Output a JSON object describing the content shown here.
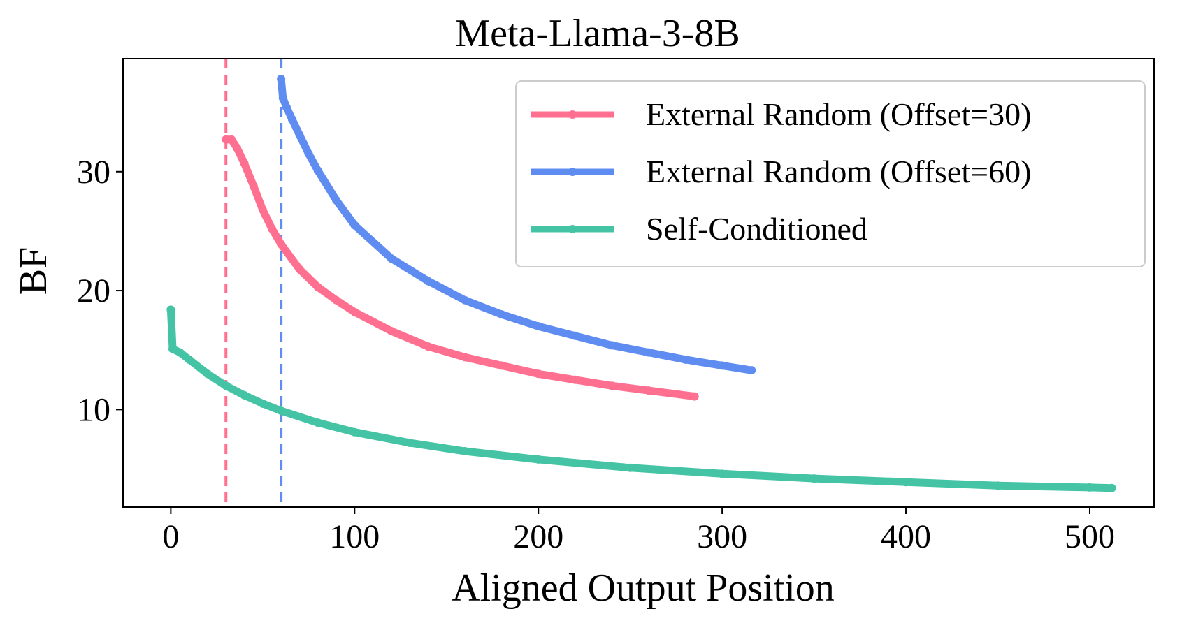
{
  "chart_data": {
    "type": "line",
    "title": "Meta-Llama-3-8B",
    "xlabel": "Aligned Output Position",
    "ylabel": "BF",
    "xlim": [
      -26,
      535
    ],
    "ylim": [
      1.8,
      39.5
    ],
    "xticks": [
      0,
      100,
      200,
      300,
      400,
      500
    ],
    "yticks": [
      10,
      20,
      30
    ],
    "legend_position": "top-right",
    "grid": false,
    "series": [
      {
        "name": "External Random (Offset=30)",
        "color": "#ff7090",
        "x": [
          30,
          33,
          36,
          40,
          45,
          50,
          55,
          60,
          70,
          80,
          90,
          100,
          120,
          140,
          160,
          180,
          200,
          220,
          240,
          260,
          285
        ],
        "y": [
          32.7,
          32.7,
          32.0,
          30.7,
          28.8,
          26.8,
          25.2,
          23.9,
          21.8,
          20.3,
          19.2,
          18.2,
          16.6,
          15.3,
          14.4,
          13.7,
          13.0,
          12.5,
          12.0,
          11.6,
          11.1
        ]
      },
      {
        "name": "External Random (Offset=60)",
        "color": "#5e8cf0",
        "x": [
          60,
          61,
          63,
          66,
          70,
          75,
          80,
          90,
          100,
          120,
          140,
          160,
          180,
          200,
          220,
          240,
          260,
          280,
          300,
          316
        ],
        "y": [
          37.8,
          36.2,
          35.4,
          34.4,
          33.1,
          31.5,
          30.1,
          27.6,
          25.5,
          22.7,
          20.8,
          19.2,
          18.0,
          17.0,
          16.2,
          15.4,
          14.8,
          14.2,
          13.7,
          13.3
        ]
      },
      {
        "name": "Self-Conditioned",
        "color": "#44c4a4",
        "x": [
          0,
          1,
          5,
          10,
          20,
          30,
          40,
          50,
          60,
          80,
          100,
          130,
          160,
          200,
          250,
          300,
          350,
          400,
          450,
          500,
          512
        ],
        "y": [
          18.4,
          15.1,
          14.8,
          14.2,
          13.0,
          12.0,
          11.2,
          10.5,
          9.9,
          8.9,
          8.1,
          7.2,
          6.5,
          5.8,
          5.1,
          4.6,
          4.2,
          3.9,
          3.6,
          3.45,
          3.4
        ]
      }
    ],
    "vlines": [
      {
        "x": 30,
        "color": "#ff7090",
        "style": "dashed"
      },
      {
        "x": 60,
        "color": "#5e8cf0",
        "style": "dashed"
      }
    ]
  }
}
